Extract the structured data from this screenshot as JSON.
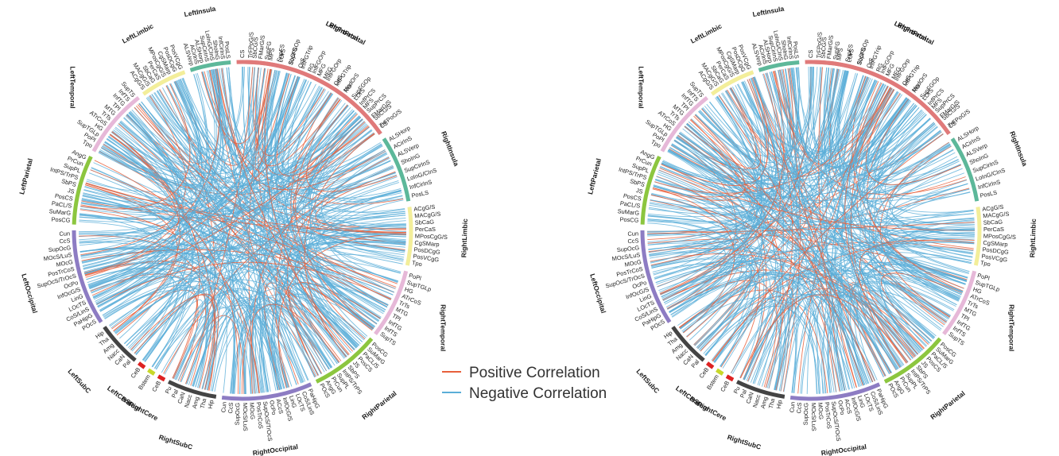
{
  "legend": {
    "positive_label": "Positive Correlation",
    "negative_label": "Negative Correlation",
    "positive_color": "#e8603c",
    "negative_color": "#5aaed8"
  },
  "colors": {
    "Frontal": "#e07a7a",
    "Insula": "#5db89a",
    "Limbic": "#f3ee9a",
    "Temporal": "#e6b8d8",
    "Parietal": "#8cc63f",
    "Occipital": "#8d7cc3",
    "SubC": "#444444",
    "Cere": "#dd2222",
    "BStem": "#c8d82a"
  },
  "regions": {
    "left_frontal": [
      "LeftFrontal",
      "CS",
      "SbCG/S",
      "SupFG",
      "SupFS",
      "SupFGOp",
      "InfFGTrip",
      "InfFGOrp",
      "MFG",
      "OrG",
      "RG",
      "LOrS",
      "MFS",
      "FMarG/S",
      "TrFPoG/S"
    ],
    "right_frontal": [
      "RightFrontal",
      "TrFPoG/S",
      "FMarG/S",
      "MFS",
      "LOrS",
      "SbOrS",
      "OrS",
      "RG",
      "MFG",
      "InfFGOrp",
      "InfFGTrip",
      "MedOrS",
      "SupFGOp",
      "InfPrCS",
      "SupPrCS",
      "SbCG/S",
      "CS"
    ],
    "left_insula": [
      "LeftInsula",
      "ALSVerp",
      "ACirInS",
      "ALSHorp",
      "SupCirInS",
      "LoInG/CInS",
      "ShoInG",
      "InfCirInS",
      "PosLS"
    ],
    "right_insula": [
      "RightInsula",
      "ALSHorp",
      "ACirInS",
      "ALSVerp",
      "ShoInG",
      "SupCirInS",
      "LoInG/CInS",
      "InfCirInS",
      "PosLS"
    ],
    "left_limbic": [
      "LeftLimbic",
      "ACgG/S",
      "MACgG/S",
      "SbCaG",
      "PerCaS",
      "MPosCgG/S",
      "CgSMarp",
      "PosDCgG",
      "PosVCgG"
    ],
    "right_limbic": [
      "RightLimbic",
      "ACgG/S",
      "MACgG/S",
      "SbCaG",
      "PerCaS",
      "MPosCgG/S",
      "CgSMarp",
      "PosDCgG",
      "PosVCgG",
      "Tpo"
    ],
    "left_temporal": [
      "LeftTemporal",
      "Tpo",
      "PoPl",
      "SupTGLp",
      "HG",
      "ATrCoS",
      "TrTs",
      "MTG",
      "TPl",
      "InfTG",
      "InfTS",
      "SupTS"
    ],
    "right_temporal": [
      "RightTemporal",
      "PoPl",
      "SupTGLp",
      "HG",
      "ATrCoS",
      "TrTs",
      "MTG",
      "TPl",
      "InfTG",
      "InfTS",
      "SupTS"
    ],
    "left_parietal": [
      "LeftParietal",
      "PosCG",
      "SuMarG",
      "PaCL/S",
      "PosCS",
      "JS",
      "SbPS",
      "IntPS/TrPS",
      "SupPL",
      "PrCun",
      "AngG"
    ],
    "right_parietal": [
      "RightParietal",
      "PosCG",
      "SuMarG",
      "PaCL/S",
      "PosCS",
      "JS",
      "SbPS",
      "IntPS/TrPS",
      "SupPL",
      "PrCun",
      "AngG",
      "POcS"
    ],
    "left_occipital": [
      "LeftOccipital",
      "POcS",
      "PaHipG",
      "CoS/LinS",
      "LOcTS",
      "LinG",
      "InfOcG/S",
      "OcPo",
      "SupOcS/TrOcS",
      "PosTrCoS",
      "MOcG",
      "MOcS/LuS",
      "SupOcG",
      "CcS",
      "Cun"
    ],
    "right_occipital": [
      "RightOccipital",
      "PaHipG",
      "CoS/LinS",
      "LOcTS",
      "LinG",
      "InfOcG/S",
      "ACcS",
      "OcPo",
      "SupOcS/TrOcS",
      "PosTrCoS",
      "MOcG",
      "MOcS/LuS",
      "SupOcG",
      "CcS",
      "Cun"
    ],
    "left_subc": [
      "LeftSubC",
      "Pal",
      "CaN",
      "Nacc",
      "Amg",
      "Tha",
      "Hip"
    ],
    "right_subc": [
      "RightSubC",
      "Hip",
      "Tha",
      "Amg",
      "Nacc",
      "CaN",
      "Pal",
      "Pu"
    ],
    "left_cere": [
      "LeftCere",
      "CeB"
    ],
    "bstem": [
      "BStem",
      "Bstem"
    ],
    "right_cere": [
      "RightCere",
      "CeB"
    ]
  }
}
